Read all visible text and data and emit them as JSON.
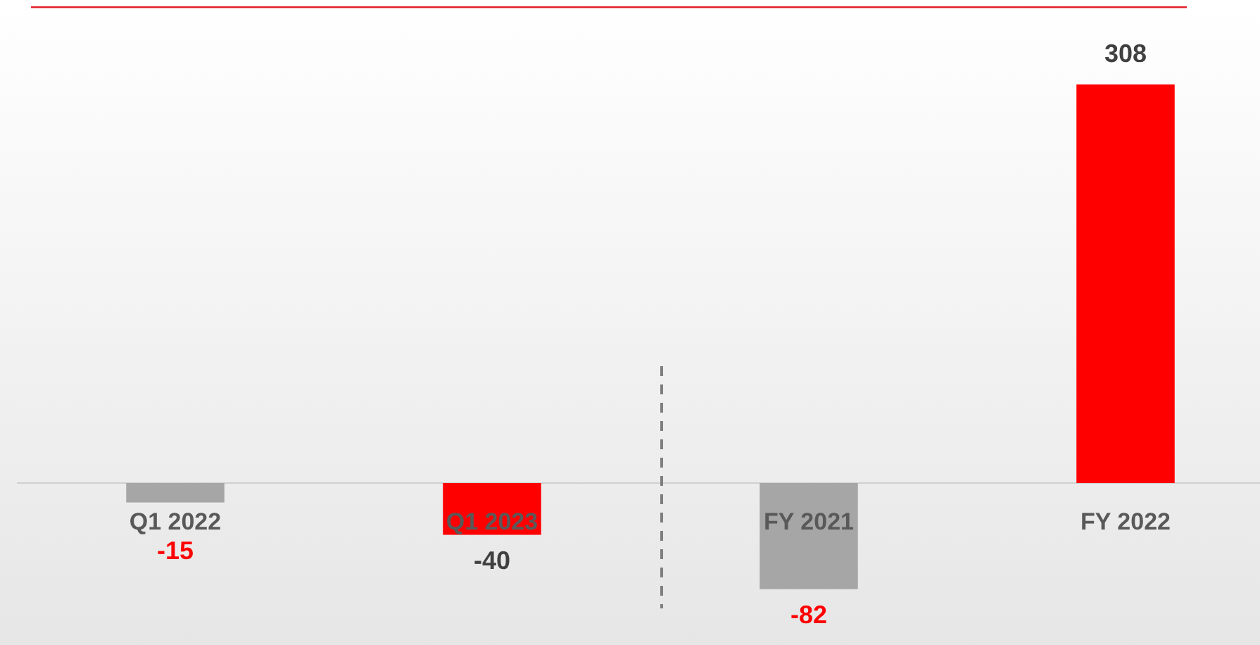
{
  "chart_data": {
    "type": "bar",
    "categories": [
      "Q1 2022",
      "Q1 2023",
      "FY 2021",
      "FY 2022"
    ],
    "values": [
      -15,
      -40,
      -82,
      308
    ],
    "colors": [
      "#a6a6a6",
      "#ff0000",
      "#a6a6a6",
      "#ff0000"
    ],
    "data_labels": true
  }
}
